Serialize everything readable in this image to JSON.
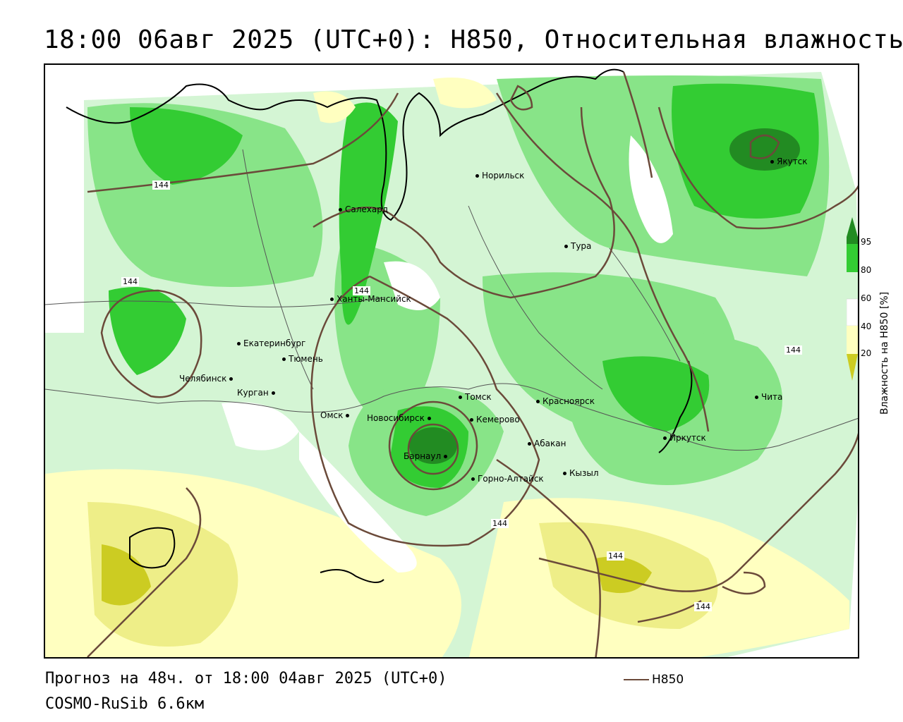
{
  "title": "18:00 06авг 2025 (UTC+0): H850, Относительная влажность",
  "footer": {
    "forecast": "Прогноз на 48ч. от 18:00 04авг 2025 (UTC+0)",
    "model": "COSMO-RuSib 6.6км"
  },
  "legend": {
    "h850_label": "H850",
    "h850_color": "#6b4a3a"
  },
  "colorbar": {
    "label": "Влажность на H850 [%]",
    "ticks": [
      "95",
      "80",
      "60",
      "40",
      "20"
    ],
    "colors": {
      "c95": "#228b22",
      "c80": "#33cc33",
      "c70": "#88e488",
      "c60": "#d4f5d4",
      "c50": "#ffffff",
      "c40": "#ffffc0",
      "c30": "#eeee88",
      "c20": "#cccc22"
    }
  },
  "contour_labels": [
    "144",
    "144",
    "144",
    "144",
    "144",
    "144",
    "144"
  ],
  "cities": [
    "Норильск",
    "Якутск",
    "Салехард",
    "Тура",
    "Ханты-Мансийск",
    "Екатеринбург",
    "Тюмень",
    "Челябинск",
    "Курган",
    "Омск",
    "Новосибирск",
    "Томск",
    "Кемерово",
    "Красноярск",
    "Барнаул",
    "Абакан",
    "Горно-Алтайск",
    "Кызыл",
    "Иркутск",
    "Чита"
  ]
}
